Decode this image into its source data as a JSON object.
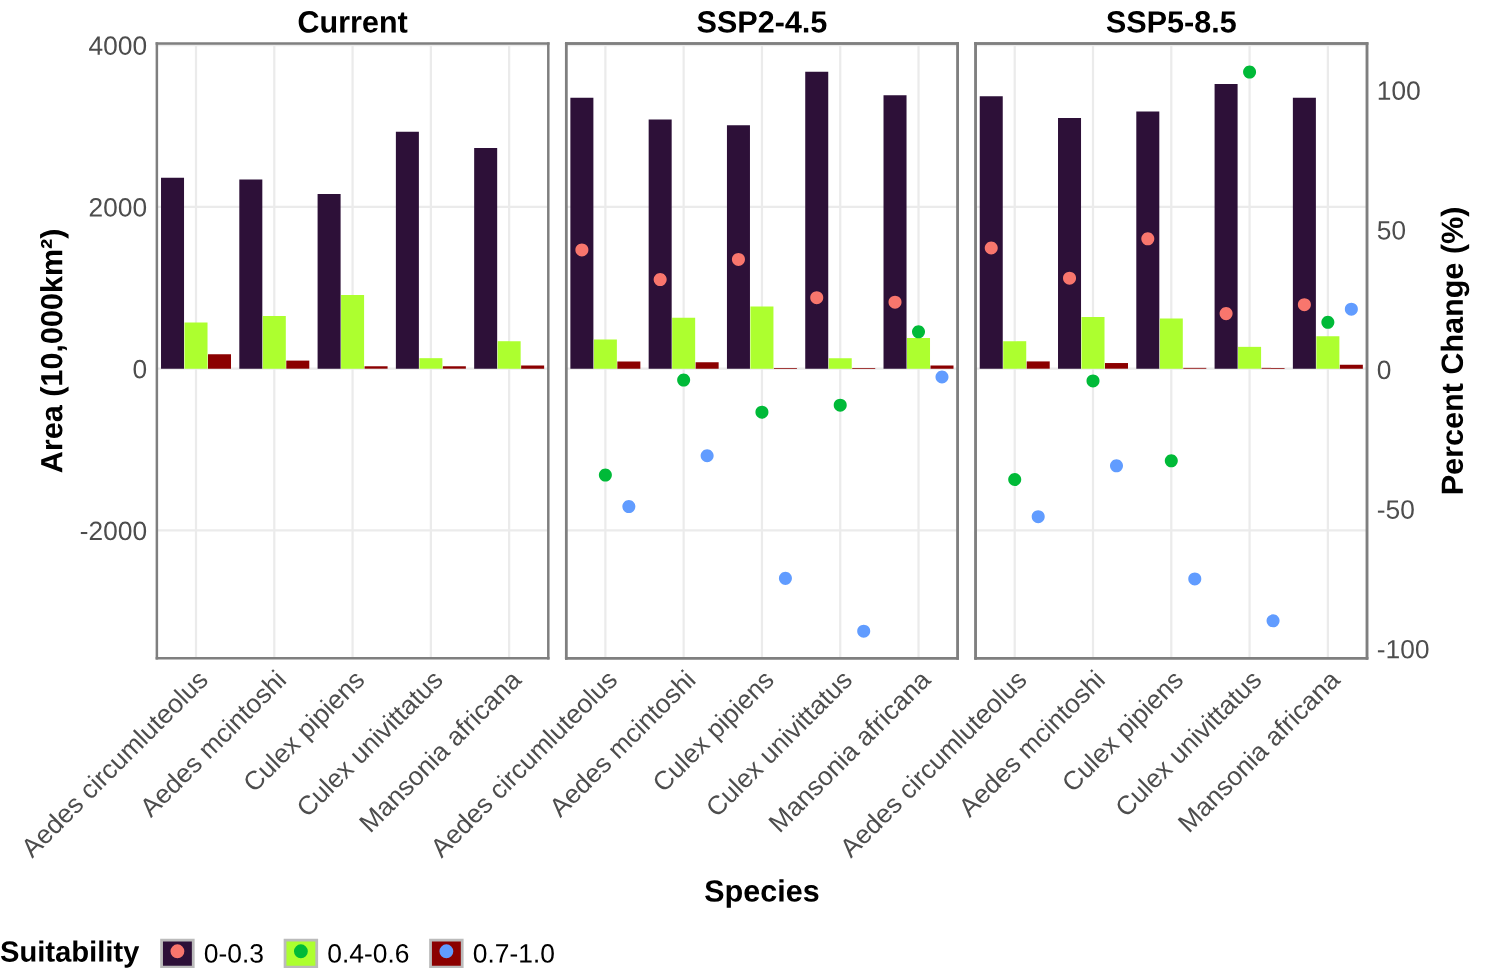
{
  "chart_data": [
    {
      "type": "bar",
      "title": "Current",
      "ylabel": "Area (10,000km²)",
      "categories": [
        "Aedes circumluteolus",
        "Aedes mcintoshi",
        "Culex pipiens",
        "Culex univittatus",
        "Mansonia africana"
      ],
      "ylim": [
        -3580,
        4020
      ],
      "yticks": [
        -2000,
        0,
        2000,
        4000
      ],
      "grid": true,
      "legend": "bottom",
      "legend_title": "Suitability",
      "series": [
        {
          "name": "0-0.3",
          "color": "#2d1038",
          "values": [
            2360,
            2340,
            2160,
            2930,
            2730
          ]
        },
        {
          "name": "0.4-0.6",
          "color": "#adff2f",
          "values": [
            570,
            650,
            910,
            130,
            340
          ]
        },
        {
          "name": "0.7-1.0",
          "color": "#8b0000",
          "values": [
            180,
            100,
            30,
            30,
            40
          ]
        }
      ]
    },
    {
      "type": "bar",
      "title": "SSP2-4.5",
      "xlabel": "Species",
      "categories": [
        "Aedes circumluteolus",
        "Aedes mcintoshi",
        "Culex pipiens",
        "Culex univittatus",
        "Mansonia africana"
      ],
      "ylim": [
        -3580,
        4020
      ],
      "yticks": [
        -2000,
        0,
        2000,
        4000
      ],
      "y2lim": [
        -103.4,
        116.7
      ],
      "y2ticks": [
        -100,
        -50,
        0,
        50,
        100
      ],
      "tick_labels": "x",
      "grid": true,
      "series": [
        {
          "color": "#2d1038",
          "values": [
            3350,
            3080,
            3010,
            3670,
            3380
          ]
        },
        {
          "color": "#adff2f",
          "values": [
            360,
            630,
            770,
            130,
            380
          ]
        },
        {
          "color": "#8b0000",
          "values": [
            90,
            80,
            10,
            10,
            40
          ]
        },
        {
          "type": "scatter",
          "axis": "y2",
          "marker": "circle",
          "color": "#f8766d",
          "values": [
            42.8,
            32.2,
            39.4,
            25.7,
            24.1
          ]
        },
        {
          "type": "scatter",
          "axis": "y2",
          "marker": "circle",
          "color": "#00ba38",
          "values": [
            -37.8,
            -3.8,
            -15.3,
            -12.8,
            13.5
          ]
        },
        {
          "type": "scatter",
          "axis": "y2",
          "marker": "circle",
          "color": "#619cff",
          "values": [
            -49.1,
            -30.9,
            -74.8,
            -93.7,
            -2.7
          ]
        }
      ]
    },
    {
      "type": "bar",
      "title": "SSP5-8.5",
      "y2label": "Percent Change (%)",
      "categories": [
        "Aedes circumluteolus",
        "Aedes mcintoshi",
        "Culex pipiens",
        "Culex univittatus",
        "Mansonia africana"
      ],
      "ylim": [
        -3580,
        4020
      ],
      "y2lim": [
        -103.4,
        116.7
      ],
      "y2ticks": [
        -100,
        -50,
        0,
        50,
        100
      ],
      "grid": true,
      "series": [
        {
          "color": "#2d1038",
          "values": [
            3370,
            3100,
            3180,
            3520,
            3350
          ]
        },
        {
          "color": "#adff2f",
          "values": [
            340,
            640,
            620,
            270,
            400
          ]
        },
        {
          "color": "#8b0000",
          "values": [
            90,
            70,
            10,
            10,
            50
          ]
        },
        {
          "type": "scatter",
          "axis": "y2",
          "marker": "circle",
          "color": "#f8766d",
          "values": [
            43.5,
            32.7,
            46.8,
            20.0,
            23.2
          ]
        },
        {
          "type": "scatter",
          "axis": "y2",
          "marker": "circle",
          "color": "#00ba38",
          "values": [
            -39.4,
            -4.1,
            -32.7,
            106.5,
            16.9
          ]
        },
        {
          "type": "scatter",
          "axis": "y2",
          "marker": "circle",
          "color": "#619cff",
          "values": [
            -52.7,
            -34.5,
            -75.0,
            -90.0,
            21.6
          ]
        }
      ]
    }
  ]
}
